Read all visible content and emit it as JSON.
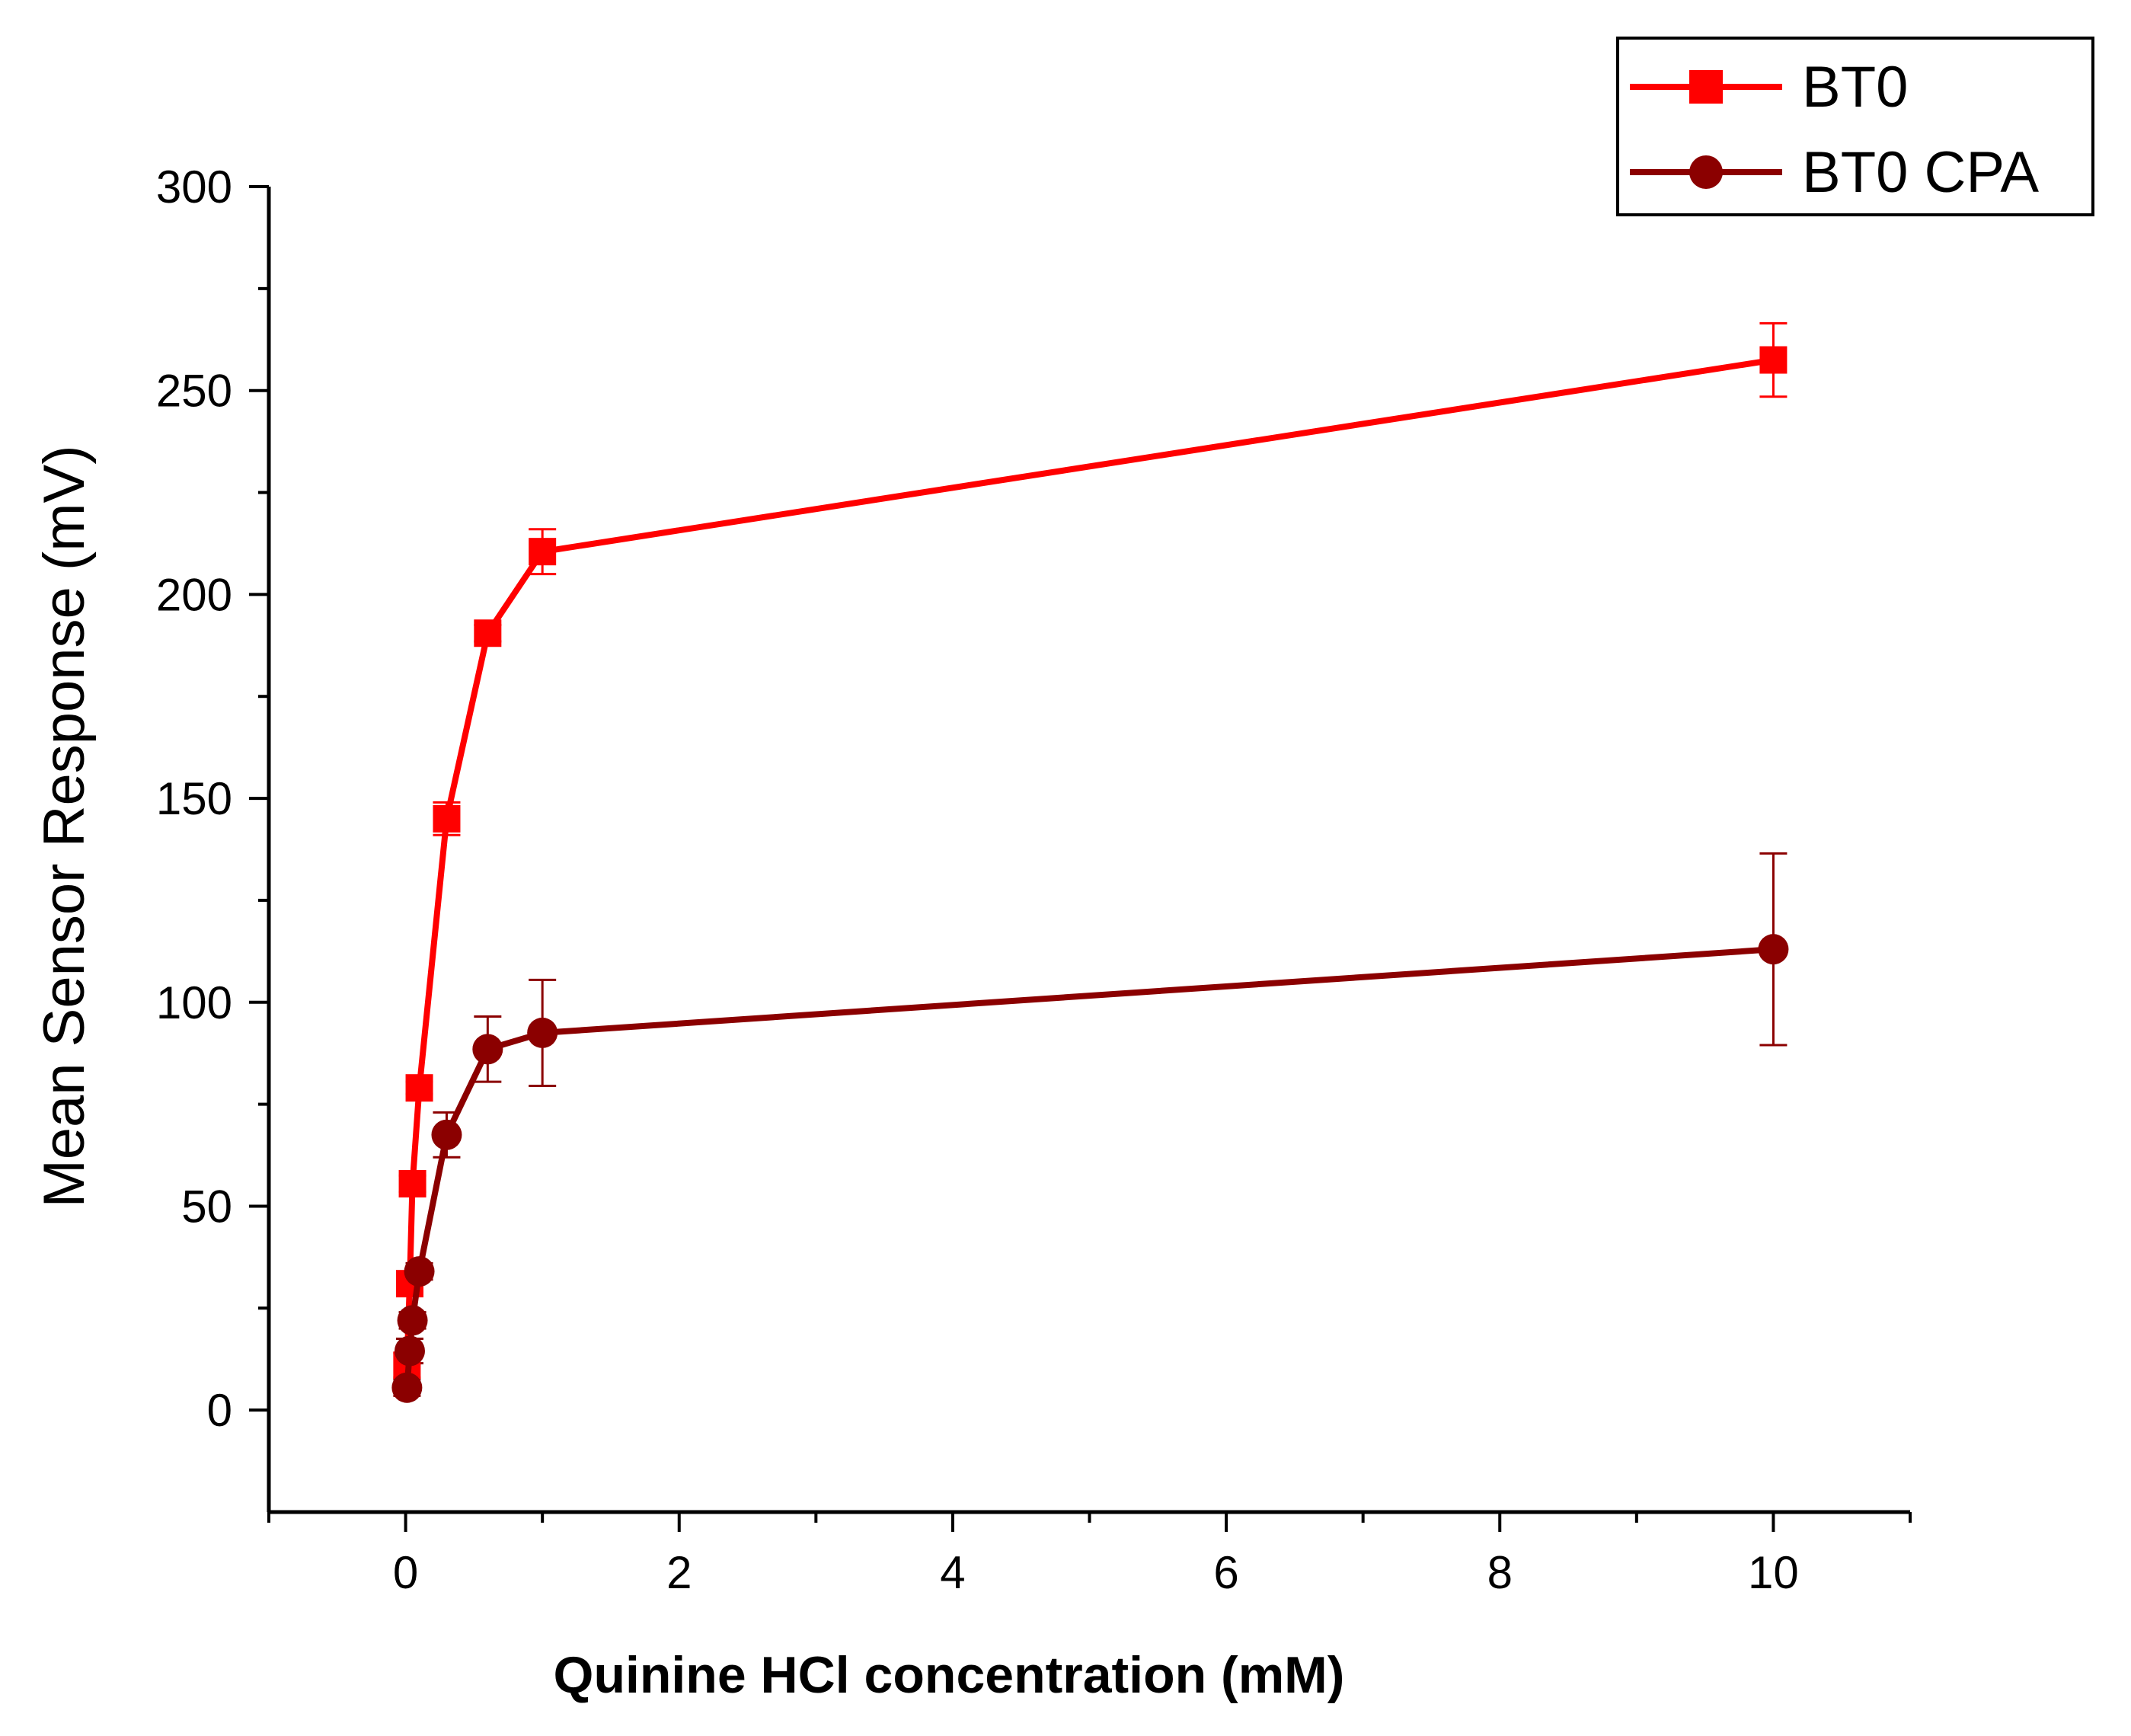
{
  "chart_data": {
    "type": "line",
    "title": "",
    "xlabel": "Quinine HCl concentration (mM)",
    "ylabel": "Mean Sensor Response (mV)",
    "xlim": [
      -1,
      11
    ],
    "ylim": [
      -25,
      300
    ],
    "xticks": [
      0,
      2,
      4,
      6,
      8,
      10
    ],
    "yticks": [
      0,
      50,
      100,
      150,
      200,
      250,
      300
    ],
    "x_minor_ticks": [
      -1,
      1,
      3,
      5,
      7,
      9,
      11
    ],
    "y_minor_ticks": [
      25,
      75,
      125,
      175,
      225,
      275
    ],
    "grid": false,
    "legend_position": "top-right",
    "series": [
      {
        "name": "BT0",
        "color": "#ff0000",
        "marker": "square",
        "x": [
          0.01,
          0.03,
          0.05,
          0.1,
          0.3,
          0.6,
          1,
          10
        ],
        "y": [
          11,
          31,
          55.5,
          79,
          145,
          190.5,
          210.5,
          257.5
        ],
        "err": [
          3,
          2,
          2,
          1.5,
          4,
          2,
          5.5,
          9
        ]
      },
      {
        "name": "BT0 CPA",
        "color": "#8b0000",
        "marker": "circle",
        "x": [
          0.01,
          0.03,
          0.05,
          0.1,
          0.3,
          0.6,
          1,
          10
        ],
        "y": [
          5.5,
          14.5,
          22,
          34,
          67.5,
          88.5,
          92.5,
          113
        ],
        "err": [
          2,
          3,
          2,
          2,
          5.5,
          8,
          13,
          23.5
        ]
      }
    ]
  }
}
